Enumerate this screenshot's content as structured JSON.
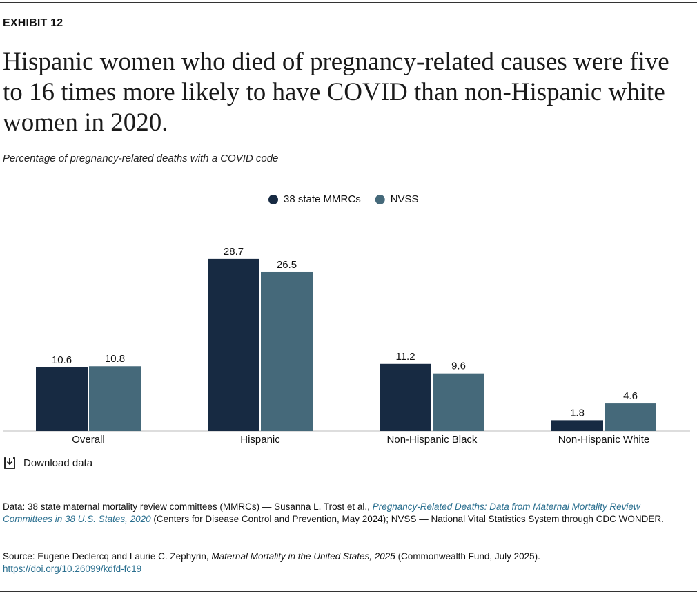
{
  "exhibit": "EXHIBIT 12",
  "chart_data": {
    "type": "bar",
    "title": "Hispanic women who died of pregnancy-related causes were five to 16 times more likely to have COVID than non-Hispanic white women in 2020.",
    "subtitle": "Percentage of pregnancy-related deaths with a COVID code",
    "categories": [
      "Overall",
      "Hispanic",
      "Non-Hispanic Black",
      "Non-Hispanic White"
    ],
    "series": [
      {
        "name": "38 state MMRCs",
        "color": "#172a42",
        "values": [
          10.6,
          28.7,
          11.2,
          1.8
        ]
      },
      {
        "name": "NVSS",
        "color": "#45697a",
        "values": [
          10.8,
          26.5,
          9.6,
          4.6
        ]
      }
    ],
    "legend": "top"
  },
  "download": "Download data",
  "notes": {
    "data": [
      "Data: 38 state maternal mortality review committees (MMRCs) — Susanna L. Trost et al., ",
      "Pregnancy-Related Deaths: Data from Maternal Mortality Review Committees in 38 U.S. States, 2020",
      " (Centers for Disease Control and Prevention, May 2024); NVSS — National Vital Statistics System through CDC WONDER."
    ],
    "source": [
      "Source: Eugene Declercq and Laurie C. Zephyrin, ",
      "Maternal Mortality in the United States, 2025",
      " (Commonwealth Fund, July 2025).",
      "https://doi.org/10.26099/kdfd-fc19"
    ]
  }
}
